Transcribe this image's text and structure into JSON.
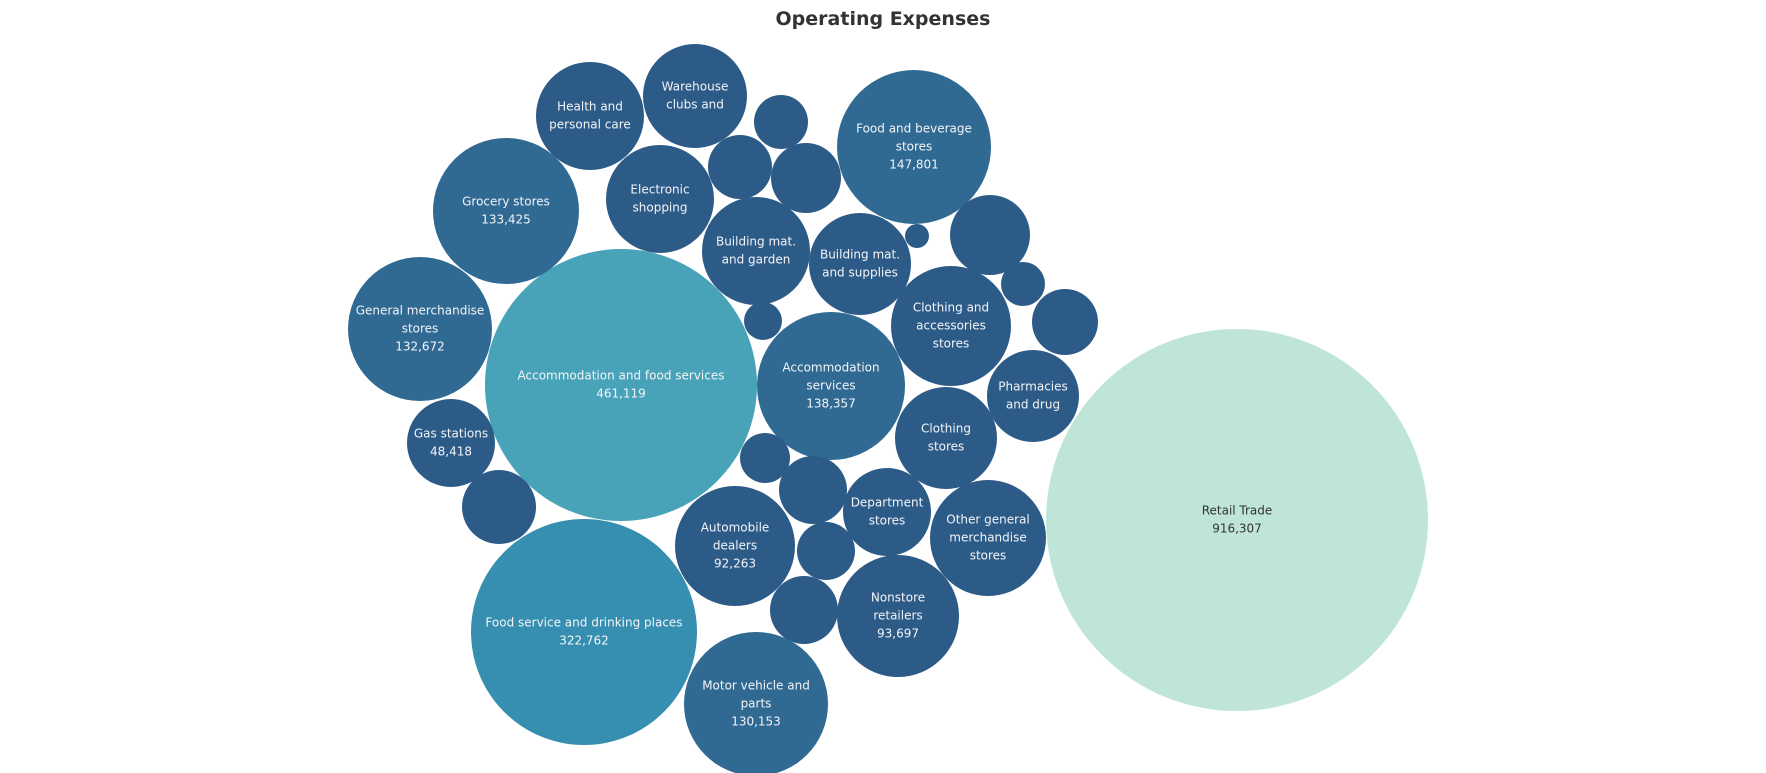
{
  "chart_data": {
    "type": "bubble",
    "title": "Operating Expenses",
    "colors": {
      "large": "#48a3b8",
      "medium_large": "#368fb0",
      "medium": "#306a93",
      "small": "#2d5b88",
      "largest": "#bfe5d9",
      "label_light": "#f2f4f7",
      "label_dark": "#333333"
    },
    "bubbles": [
      {
        "name": "Retail Trade",
        "label": [
          "Retail Trade"
        ],
        "value": 916307,
        "value_label": "916,307",
        "color": "largest"
      },
      {
        "name": "Accommodation and food services",
        "label": [
          "Accommodation and food services"
        ],
        "value": 461119,
        "value_label": "461,119",
        "color": "large"
      },
      {
        "name": "Food service and drinking places",
        "label": [
          "Food service and drinking places"
        ],
        "value": 322762,
        "value_label": "322,762",
        "color": "medium_large"
      },
      {
        "name": "Food and beverage stores",
        "label": [
          "Food and beverage",
          "stores"
        ],
        "value": 147801,
        "value_label": "147,801",
        "color": "medium"
      },
      {
        "name": "Accommodation services",
        "label": [
          "Accommodation",
          "services"
        ],
        "value": 138357,
        "value_label": "138,357",
        "color": "medium"
      },
      {
        "name": "Grocery stores",
        "label": [
          "Grocery stores"
        ],
        "value": 133425,
        "value_label": "133,425",
        "color": "medium"
      },
      {
        "name": "General merchandise stores",
        "label": [
          "General merchandise",
          "stores"
        ],
        "value": 132672,
        "value_label": "132,672",
        "color": "medium"
      },
      {
        "name": "Motor vehicle and parts",
        "label": [
          "Motor vehicle and",
          "parts"
        ],
        "value": 130153,
        "value_label": "130,153",
        "color": "medium"
      },
      {
        "name": "Nonstore retailers",
        "label": [
          "Nonstore",
          "retailers"
        ],
        "value": 93697,
        "value_label": "93,697",
        "color": "small"
      },
      {
        "name": "Automobile dealers",
        "label": [
          "Automobile",
          "dealers"
        ],
        "value": 92263,
        "value_label": "92,263",
        "color": "small"
      },
      {
        "name": "Gas stations",
        "label": [
          "Gas stations"
        ],
        "value": 48418,
        "value_label": "48,418",
        "color": "small"
      },
      {
        "name": "Clothing and accessories stores",
        "label": [
          "Clothing and",
          "accessories",
          "stores"
        ],
        "value": null,
        "value_label": "",
        "color": "small"
      },
      {
        "name": "Other general merchandise stores",
        "label": [
          "Other general",
          "merchandise",
          "stores"
        ],
        "value": null,
        "value_label": "",
        "color": "small"
      },
      {
        "name": "Health and personal care",
        "label": [
          "Health and",
          "personal care"
        ],
        "value": null,
        "value_label": "",
        "color": "small"
      },
      {
        "name": "Warehouse clubs and",
        "label": [
          "Warehouse",
          "clubs and"
        ],
        "value": null,
        "value_label": "",
        "color": "small"
      },
      {
        "name": "Electronic shopping",
        "label": [
          "Electronic",
          "shopping"
        ],
        "value": null,
        "value_label": "",
        "color": "small"
      },
      {
        "name": "Building mat. and garden",
        "label": [
          "Building mat.",
          "and garden"
        ],
        "value": null,
        "value_label": "",
        "color": "small"
      },
      {
        "name": "Building mat. and supplies",
        "label": [
          "Building mat.",
          "and supplies"
        ],
        "value": null,
        "value_label": "",
        "color": "small"
      },
      {
        "name": "Clothing stores",
        "label": [
          "Clothing",
          "stores"
        ],
        "value": null,
        "value_label": "",
        "color": "small"
      },
      {
        "name": "Pharmacies and drug",
        "label": [
          "Pharmacies",
          "and drug"
        ],
        "value": null,
        "value_label": "",
        "color": "small"
      },
      {
        "name": "Department stores",
        "label": [
          "Department",
          "stores"
        ],
        "value": null,
        "value_label": "",
        "color": "small"
      },
      {
        "name": "Unlabeled 1",
        "label": [],
        "value": null,
        "value_label": "",
        "color": "small"
      },
      {
        "name": "Unlabeled 2",
        "label": [],
        "value": null,
        "value_label": "",
        "color": "small"
      },
      {
        "name": "Unlabeled 3",
        "label": [],
        "value": null,
        "value_label": "",
        "color": "small"
      },
      {
        "name": "Unlabeled 4",
        "label": [],
        "value": null,
        "value_label": "",
        "color": "small"
      },
      {
        "name": "Unlabeled 5",
        "label": [],
        "value": null,
        "value_label": "",
        "color": "small"
      },
      {
        "name": "Unlabeled 6",
        "label": [],
        "value": null,
        "value_label": "",
        "color": "small"
      },
      {
        "name": "Unlabeled 7",
        "label": [],
        "value": null,
        "value_label": "",
        "color": "small"
      },
      {
        "name": "Unlabeled 8",
        "label": [],
        "value": null,
        "value_label": "",
        "color": "small"
      },
      {
        "name": "Unlabeled 9",
        "label": [],
        "value": null,
        "value_label": "",
        "color": "small"
      },
      {
        "name": "Unlabeled 10",
        "label": [],
        "value": null,
        "value_label": "",
        "color": "small"
      },
      {
        "name": "Unlabeled 11",
        "label": [],
        "value": null,
        "value_label": "",
        "color": "small"
      },
      {
        "name": "Unlabeled 12",
        "label": [],
        "value": null,
        "value_label": "",
        "color": "small"
      },
      {
        "name": "Unlabeled 13",
        "label": [],
        "value": null,
        "value_label": "",
        "color": "small"
      },
      {
        "name": "Unlabeled 14",
        "label": [],
        "value": null,
        "value_label": "",
        "color": "small"
      }
    ]
  }
}
